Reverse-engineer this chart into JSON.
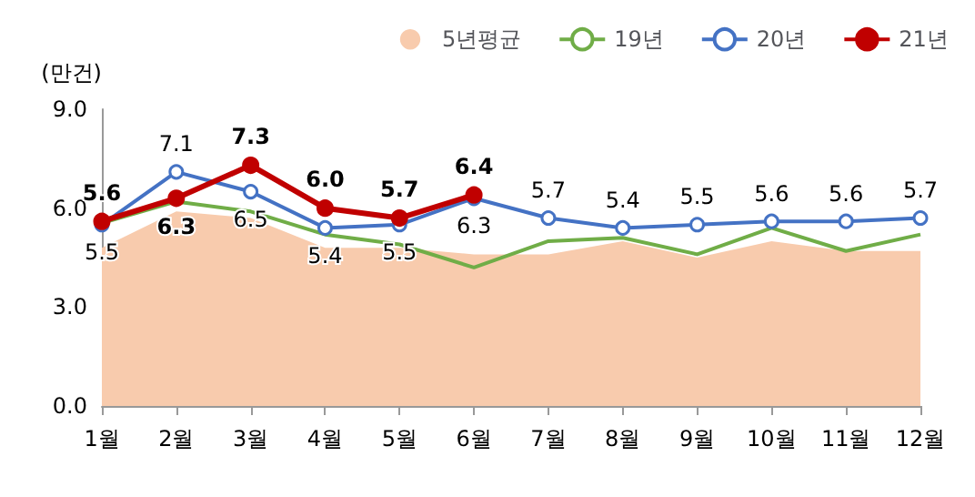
{
  "chart_data": {
    "type": "line",
    "ylabel": "(만건)",
    "categories": [
      "1월",
      "2월",
      "3월",
      "4월",
      "5월",
      "6월",
      "7월",
      "8월",
      "9월",
      "10월",
      "11월",
      "12월"
    ],
    "series": [
      {
        "name": "5년평균",
        "type": "area",
        "color": "#f8cbad",
        "values": [
          4.8,
          5.9,
          5.7,
          4.8,
          4.8,
          4.6,
          4.6,
          5.0,
          4.5,
          5.0,
          4.7,
          4.7
        ]
      },
      {
        "name": "19년",
        "color": "#70ad47",
        "marker": "none",
        "values": [
          5.55,
          6.2,
          5.9,
          5.2,
          4.9,
          4.2,
          5.0,
          5.1,
          4.6,
          5.4,
          4.7,
          5.2
        ]
      },
      {
        "name": "20년",
        "color": "#4472c4",
        "marker": "circle",
        "values": [
          5.5,
          7.1,
          6.5,
          5.4,
          5.5,
          6.3,
          5.7,
          5.4,
          5.5,
          5.6,
          5.6,
          5.7
        ],
        "value_labels": [
          "5.5",
          "7.1",
          "6.5",
          "5.4",
          "5.5",
          "6.3",
          "5.7",
          "5.4",
          "5.5",
          "5.6",
          "5.6",
          "5.7"
        ]
      },
      {
        "name": "21년",
        "color": "#c00000",
        "marker": "circle",
        "values": [
          5.6,
          6.3,
          7.3,
          6.0,
          5.7,
          6.4,
          null,
          null,
          null,
          null,
          null,
          null
        ],
        "value_labels": [
          "5.6",
          "6.3",
          "7.3",
          "6.0",
          "5.7",
          "6.4",
          null,
          null,
          null,
          null,
          null,
          null
        ]
      }
    ],
    "ylim": [
      0,
      9
    ],
    "yticks": [
      {
        "value": 0,
        "label": "0.0"
      },
      {
        "value": 3,
        "label": "3.0"
      },
      {
        "value": 6,
        "label": "6.0"
      },
      {
        "value": 9,
        "label": "9.0"
      }
    ],
    "legend": "top"
  }
}
